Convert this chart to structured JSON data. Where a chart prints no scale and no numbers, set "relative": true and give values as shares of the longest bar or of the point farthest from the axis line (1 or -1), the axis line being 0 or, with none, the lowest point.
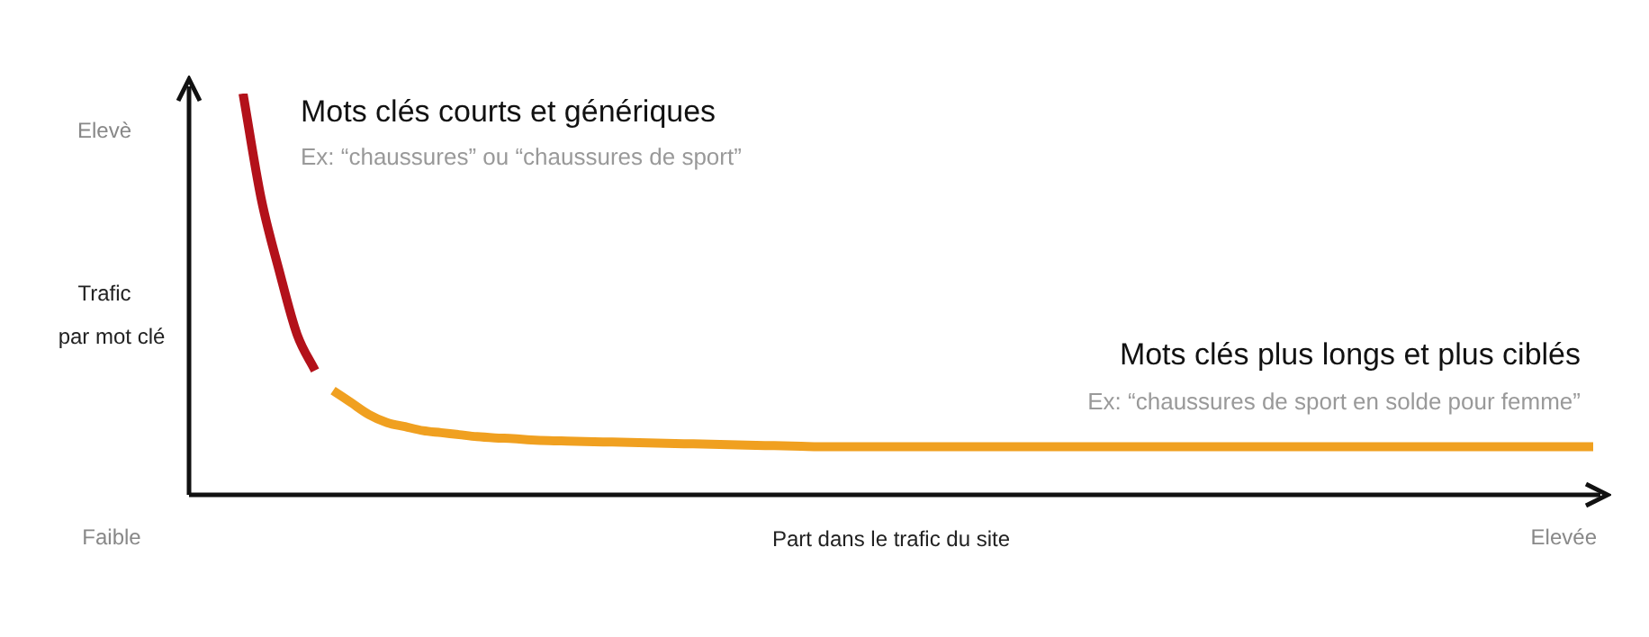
{
  "chart_data": {
    "type": "line",
    "relative": true,
    "ylabel": "Trafic par mot clé",
    "xlabel": "Part dans le trafic du site",
    "legend": false,
    "marker": "none",
    "line_style": "solid",
    "categories": [
      null,
      null,
      null,
      null,
      null,
      null,
      null,
      null,
      null,
      null,
      null,
      null,
      null,
      null,
      null,
      null,
      null,
      null,
      null,
      null,
      null,
      null,
      null,
      null,
      null,
      null,
      null,
      null,
      null,
      null,
      null,
      null,
      null,
      null,
      null,
      null,
      null,
      null,
      null,
      null,
      null,
      null,
      null,
      null,
      null,
      null,
      null,
      null,
      null,
      null,
      null,
      null,
      null,
      null,
      null,
      null,
      null,
      null,
      null,
      null,
      null,
      null,
      null,
      null,
      null,
      null,
      null,
      null,
      null,
      null,
      null,
      null,
      null,
      null,
      null,
      null,
      null,
      null,
      null
    ],
    "series": [
      {
        "name": "Mots clés courts et génériques",
        "color": "#b3111a",
        "values": [
          null,
          null,
          null,
          1,
          0.74,
          0.56,
          0.4,
          0.31,
          null,
          null,
          null,
          null,
          null,
          null,
          null,
          null,
          null,
          null,
          null,
          null,
          null,
          null,
          null,
          null,
          null,
          null,
          null,
          null,
          null,
          null,
          null,
          null,
          null,
          null,
          null,
          null,
          null,
          null,
          null,
          null,
          null,
          null,
          null,
          null,
          null,
          null,
          null,
          null,
          null,
          null,
          null,
          null,
          null,
          null,
          null,
          null,
          null,
          null,
          null,
          null,
          null,
          null,
          null,
          null,
          null,
          null,
          null,
          null,
          null,
          null,
          null,
          null,
          null,
          null,
          null,
          null,
          null,
          null,
          null
        ]
      },
      {
        "name": "Mots clés plus longs et plus ciblés",
        "color": "#f0a020",
        "values": [
          null,
          null,
          null,
          null,
          null,
          null,
          null,
          null,
          0.26,
          0.23,
          0.2,
          0.18,
          0.17,
          0.16,
          0.155,
          0.15,
          0.145,
          0.142,
          0.14,
          0.137,
          0.135,
          0.134,
          0.133,
          0.132,
          0.131,
          0.13,
          0.129,
          0.128,
          0.127,
          0.126,
          0.125,
          0.124,
          0.123,
          0.122,
          0.121,
          0.12,
          0.12,
          0.12,
          0.12,
          0.12,
          0.12,
          0.12,
          0.12,
          0.12,
          0.12,
          0.12,
          0.12,
          0.12,
          0.12,
          0.12,
          0.12,
          0.12,
          0.12,
          0.12,
          0.12,
          0.12,
          0.12,
          0.12,
          0.12,
          0.12,
          0.12,
          0.12,
          0.12,
          0.12,
          0.12,
          0.12,
          0.12,
          0.12,
          0.12,
          0.12,
          0.12,
          0.12,
          0.12,
          0.12,
          0.12,
          0.12,
          0.12,
          0.12,
          0.12
        ]
      }
    ],
    "annotations": [
      "Elevè",
      "Faible",
      "Elevée",
      "Ex: “chaussures” ou “chaussures de sport”",
      "Ex: “chaussures de sport en solde pour femme”"
    ]
  }
}
